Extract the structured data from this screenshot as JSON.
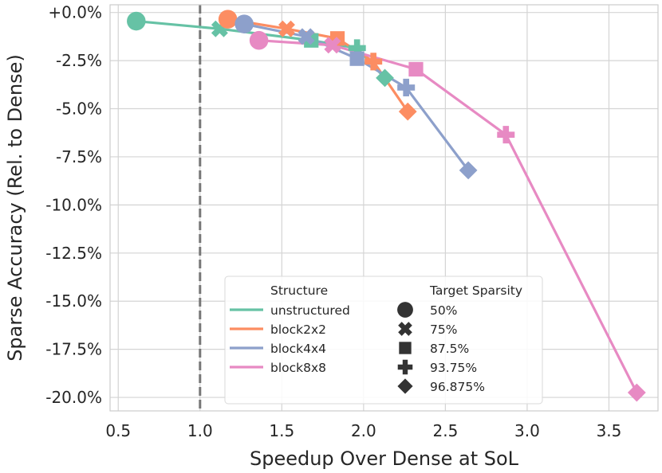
{
  "chart_data": {
    "type": "line",
    "title": "",
    "xlabel": "Speedup Over Dense at SoL",
    "ylabel": "Sparse Accuracy (Rel. to Dense)",
    "xlim": [
      0.45,
      3.8
    ],
    "ylim": [
      -20.7,
      0.4
    ],
    "xticks": [
      0.5,
      1.0,
      1.5,
      2.0,
      2.5,
      3.0,
      3.5
    ],
    "xtick_labels": [
      "0.5",
      "1.0",
      "1.5",
      "2.0",
      "2.5",
      "3.0",
      "3.5"
    ],
    "yticks": [
      0.0,
      -2.5,
      -5.0,
      -7.5,
      -10.0,
      -12.5,
      -15.0,
      -17.5,
      -20.0
    ],
    "ytick_labels": [
      "+0.0%",
      "-2.5%",
      "-5.0%",
      "-7.5%",
      "-10.0%",
      "-12.5%",
      "-15.0%",
      "-17.5%",
      "-20.0%"
    ],
    "grid": true,
    "reference_line": {
      "x": 1.0,
      "style": "dashed",
      "color": "#777777"
    },
    "sparsity_levels": [
      "50%",
      "75%",
      "87.5%",
      "93.75%",
      "96.875%"
    ],
    "markers": [
      "circle",
      "x",
      "square",
      "plus",
      "diamond"
    ],
    "series": [
      {
        "name": "unstructured",
        "color": "#66c2a5",
        "x": [
          0.61,
          1.12,
          1.68,
          1.96,
          2.13
        ],
        "y": [
          -0.45,
          -0.85,
          -1.45,
          -1.85,
          -3.4
        ]
      },
      {
        "name": "block2x2",
        "color": "#fc8d62",
        "x": [
          1.17,
          1.53,
          1.84,
          2.06,
          2.27
        ],
        "y": [
          -0.35,
          -0.85,
          -1.35,
          -2.55,
          -5.15
        ]
      },
      {
        "name": "block4x4",
        "color": "#8da0cb",
        "x": [
          1.27,
          1.65,
          1.96,
          2.26,
          2.64
        ],
        "y": [
          -0.6,
          -1.25,
          -2.4,
          -3.9,
          -8.2
        ]
      },
      {
        "name": "block8x8",
        "color": "#e78ac3",
        "x": [
          1.36,
          1.81,
          2.32,
          2.87,
          3.67
        ],
        "y": [
          -1.45,
          -1.7,
          -2.95,
          -6.35,
          -19.75
        ]
      }
    ],
    "legend": {
      "position": "lower-center",
      "structure_title": "Structure",
      "sparsity_title": "Target Sparsity"
    }
  }
}
